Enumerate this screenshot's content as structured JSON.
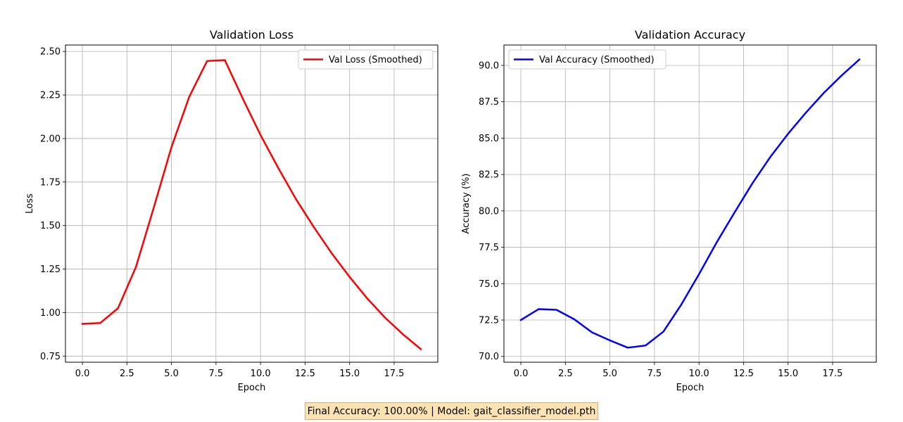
{
  "footer": {
    "status_text": "Final Accuracy: 100.00% | Model: gait_classifier_model.pth"
  },
  "chart_data": [
    {
      "type": "line",
      "title": "Validation Loss",
      "xlabel": "Epoch",
      "ylabel": "Loss",
      "xlim": [
        -0.95,
        19.95
      ],
      "ylim": [
        0.715,
        2.537
      ],
      "xticks": [
        0.0,
        2.5,
        5.0,
        7.5,
        10.0,
        12.5,
        15.0,
        17.5
      ],
      "xtick_labels": [
        "0.0",
        "2.5",
        "5.0",
        "7.5",
        "10.0",
        "12.5",
        "15.0",
        "17.5"
      ],
      "yticks": [
        0.75,
        1.0,
        1.25,
        1.5,
        1.75,
        2.0,
        2.25,
        2.5
      ],
      "ytick_labels": [
        "0.75",
        "1.00",
        "1.25",
        "1.50",
        "1.75",
        "2.00",
        "2.25",
        "2.50"
      ],
      "grid": true,
      "legend_position": "top-right",
      "series": [
        {
          "name": "Val Loss (Smoothed)",
          "color": "#ff0000",
          "x": [
            0,
            1,
            2,
            3,
            4,
            5,
            6,
            7,
            8,
            9,
            10,
            11,
            12,
            13,
            14,
            15,
            16,
            17,
            18,
            19
          ],
          "y": [
            0.935,
            0.94,
            1.025,
            1.26,
            1.6,
            1.95,
            2.24,
            2.445,
            2.45,
            2.23,
            2.02,
            1.83,
            1.65,
            1.49,
            1.34,
            1.205,
            1.08,
            0.97,
            0.875,
            0.79
          ]
        }
      ]
    },
    {
      "type": "line",
      "title": "Validation Accuracy",
      "xlabel": "Epoch",
      "ylabel": "Accuracy (%)",
      "xlim": [
        -0.95,
        19.95
      ],
      "ylim": [
        69.6,
        91.4
      ],
      "xticks": [
        0.0,
        2.5,
        5.0,
        7.5,
        10.0,
        12.5,
        15.0,
        17.5
      ],
      "xtick_labels": [
        "0.0",
        "2.5",
        "5.0",
        "7.5",
        "10.0",
        "12.5",
        "15.0",
        "17.5"
      ],
      "yticks": [
        70.0,
        72.5,
        75.0,
        77.5,
        80.0,
        82.5,
        85.0,
        87.5,
        90.0
      ],
      "ytick_labels": [
        "70.0",
        "72.5",
        "75.0",
        "77.5",
        "80.0",
        "82.5",
        "85.0",
        "87.5",
        "90.0"
      ],
      "grid": true,
      "legend_position": "top-left",
      "series": [
        {
          "name": "Val Accuracy (Smoothed)",
          "color": "#0000ff",
          "x": [
            0,
            1,
            2,
            3,
            4,
            5,
            6,
            7,
            8,
            9,
            10,
            11,
            12,
            13,
            14,
            15,
            16,
            17,
            18,
            19
          ],
          "y": [
            72.5,
            73.25,
            73.2,
            72.55,
            71.65,
            71.1,
            70.6,
            70.75,
            71.7,
            73.55,
            75.65,
            77.85,
            79.9,
            81.9,
            83.7,
            85.3,
            86.75,
            88.1,
            89.3,
            90.4
          ]
        }
      ]
    }
  ]
}
